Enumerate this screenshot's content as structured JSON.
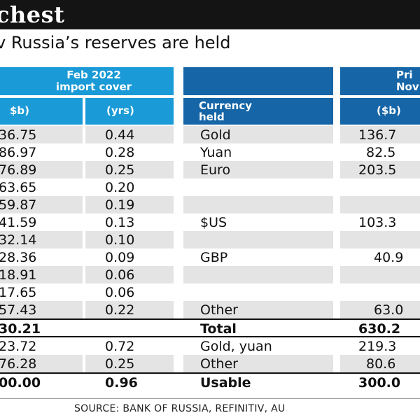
{
  "header": {
    "title": "chest",
    "subtitle": "v Russia’s reserves are held"
  },
  "table": {
    "group_feb": "Feb 2022\nimport cover",
    "group_currency": "",
    "group_right": "Pri\nNov",
    "col_b": "$b)",
    "col_yrs": "(yrs)",
    "col_currency": "Currency\nheld",
    "col_right_b": "($b)",
    "rows": [
      {
        "b": "36.75",
        "yrs": "0.44",
        "cur": "Gold",
        "right": "136.7"
      },
      {
        "b": "86.97",
        "yrs": "0.28",
        "cur": "Yuan",
        "right": "82.5"
      },
      {
        "b": "76.89",
        "yrs": "0.25",
        "cur": "Euro",
        "right": "203.5"
      },
      {
        "b": "63.65",
        "yrs": "0.20",
        "cur": "",
        "right": ""
      },
      {
        "b": "59.87",
        "yrs": "0.19",
        "cur": "",
        "right": ""
      },
      {
        "b": "41.59",
        "yrs": "0.13",
        "cur": "$US",
        "right": "103.3"
      },
      {
        "b": "32.14",
        "yrs": "0.10",
        "cur": "",
        "right": ""
      },
      {
        "b": "28.36",
        "yrs": "0.09",
        "cur": "GBP",
        "right": "40.9"
      },
      {
        "b": "18.91",
        "yrs": "0.06",
        "cur": "",
        "right": ""
      },
      {
        "b": "17.65",
        "yrs": "0.06",
        "cur": "",
        "right": ""
      },
      {
        "b": "57.43",
        "yrs": "0.22",
        "cur": "Other",
        "right": "63.0"
      },
      {
        "b": "30.21",
        "yrs": "",
        "cur": "Total",
        "right": "630.2"
      },
      {
        "b": "23.72",
        "yrs": "0.72",
        "cur": "Gold, yuan",
        "right": "219.3"
      },
      {
        "b": "76.28",
        "yrs": "0.25",
        "cur": "Other",
        "right": "80.6"
      },
      {
        "b": "00.00",
        "yrs": "0.96",
        "cur": "Usable",
        "right": "300.0"
      }
    ]
  },
  "source": "SOURCE: BANK OF RUSSIA, REFINITIV, AU",
  "colors": {
    "header_bar": "#141414",
    "blue": "#1565a7",
    "cyan": "#1a9ad6",
    "shade": "#e4e4e4"
  }
}
